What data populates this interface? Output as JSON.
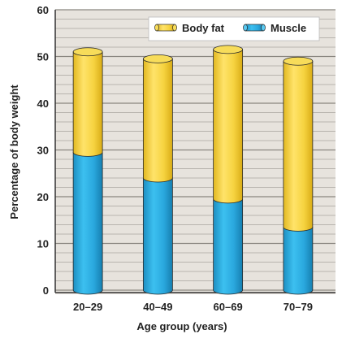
{
  "chart_data": {
    "type": "bar",
    "stacked": true,
    "categories": [
      "20–29",
      "40–49",
      "60–69",
      "70–79"
    ],
    "series": [
      {
        "name": "Muscle",
        "values": [
          29.5,
          24,
          19.5,
          13.5
        ],
        "color": "#29b0e6"
      },
      {
        "name": "Body fat",
        "values": [
          21.5,
          25.5,
          32,
          35.5
        ],
        "color": "#f5d33b"
      }
    ],
    "xlabel": "Age group (years)",
    "ylabel": "Percentage of body weight",
    "ylim": [
      0,
      60
    ],
    "yticks": [
      0,
      10,
      20,
      30,
      40,
      50,
      60
    ],
    "grid": true,
    "legend": "top-right",
    "legend_order": [
      "Body fat",
      "Muscle"
    ],
    "background_color": "#e7e3dd",
    "grid_color": "#8a8680"
  }
}
